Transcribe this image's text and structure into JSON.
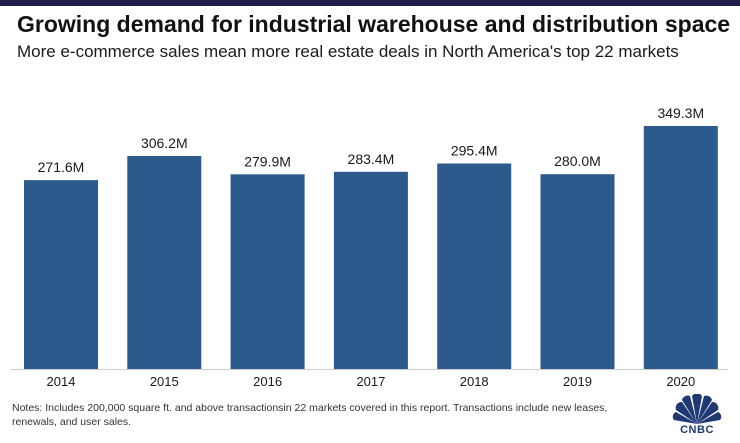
{
  "header": {
    "title": "Growing demand for industrial warehouse and distribution space",
    "subtitle": "More e-commerce sales mean more real estate deals in North America's top 22 markets"
  },
  "chart_data": {
    "type": "bar",
    "categories": [
      "2014",
      "2015",
      "2016",
      "2017",
      "2018",
      "2019",
      "2020"
    ],
    "values": [
      271.6,
      306.2,
      279.9,
      283.4,
      295.4,
      280.0,
      349.3
    ],
    "value_labels": [
      "271.6M",
      "306.2M",
      "279.9M",
      "283.4M",
      "295.4M",
      "280.0M",
      "349.3M"
    ],
    "title": "Growing demand for industrial warehouse and distribution space",
    "subtitle": "More e-commerce sales mean more real estate deals in North America's top 22 markets",
    "xlabel": "",
    "ylabel": "",
    "ylim": [
      0,
      360
    ],
    "grid": false,
    "colors": {
      "bar": "#2c5a8c",
      "axis": "#cccccc"
    }
  },
  "footer": {
    "notes": "Notes: Includes 200,000 square ft. and above transactionsin 22 markets covered in this report. Transactions include new leases, renewals, and user sales.",
    "logo_text": "CNBC",
    "logo_icon": "peacock-icon"
  }
}
